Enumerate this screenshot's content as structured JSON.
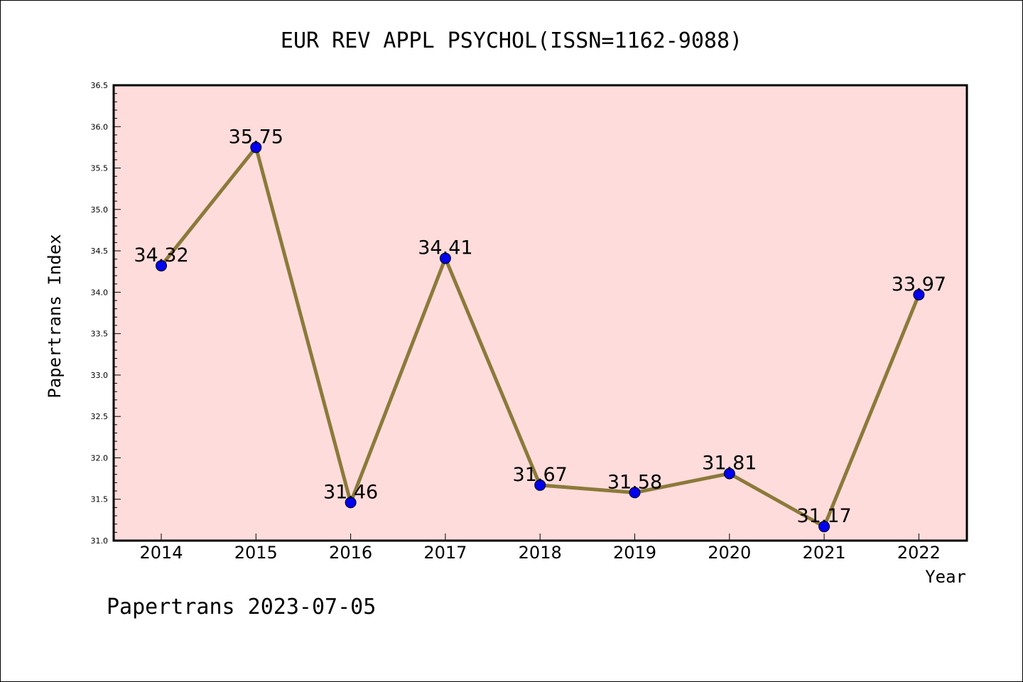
{
  "chart_data": {
    "type": "line",
    "title": "EUR REV APPL PSYCHOL(ISSN=1162-9088)",
    "xlabel": "Year",
    "ylabel": "Papertrans Index",
    "footer": "Papertrans 2023-07-05",
    "x": [
      "2014",
      "2015",
      "2016",
      "2017",
      "2018",
      "2019",
      "2020",
      "2021",
      "2022"
    ],
    "series": [
      {
        "values": [
          34.32,
          35.75,
          31.46,
          34.41,
          31.67,
          31.58,
          31.81,
          31.17,
          33.97
        ],
        "labels": [
          "34.32",
          "35.75",
          "31.46",
          "34.41",
          "31.67",
          "31.58",
          "31.81",
          "31.17",
          "33.97"
        ]
      }
    ],
    "ylim": [
      31.0,
      36.5
    ],
    "yticks": [
      "31.0",
      "31.5",
      "32.0",
      "32.5",
      "33.0",
      "33.5",
      "34.0",
      "34.5",
      "35.0",
      "35.5",
      "36.0",
      "36.5"
    ],
    "grid": false,
    "colors": {
      "plot_background": "#ffdcdc",
      "line": "#8b7a3a",
      "marker": "#0000ee",
      "axis": "#000000"
    }
  }
}
